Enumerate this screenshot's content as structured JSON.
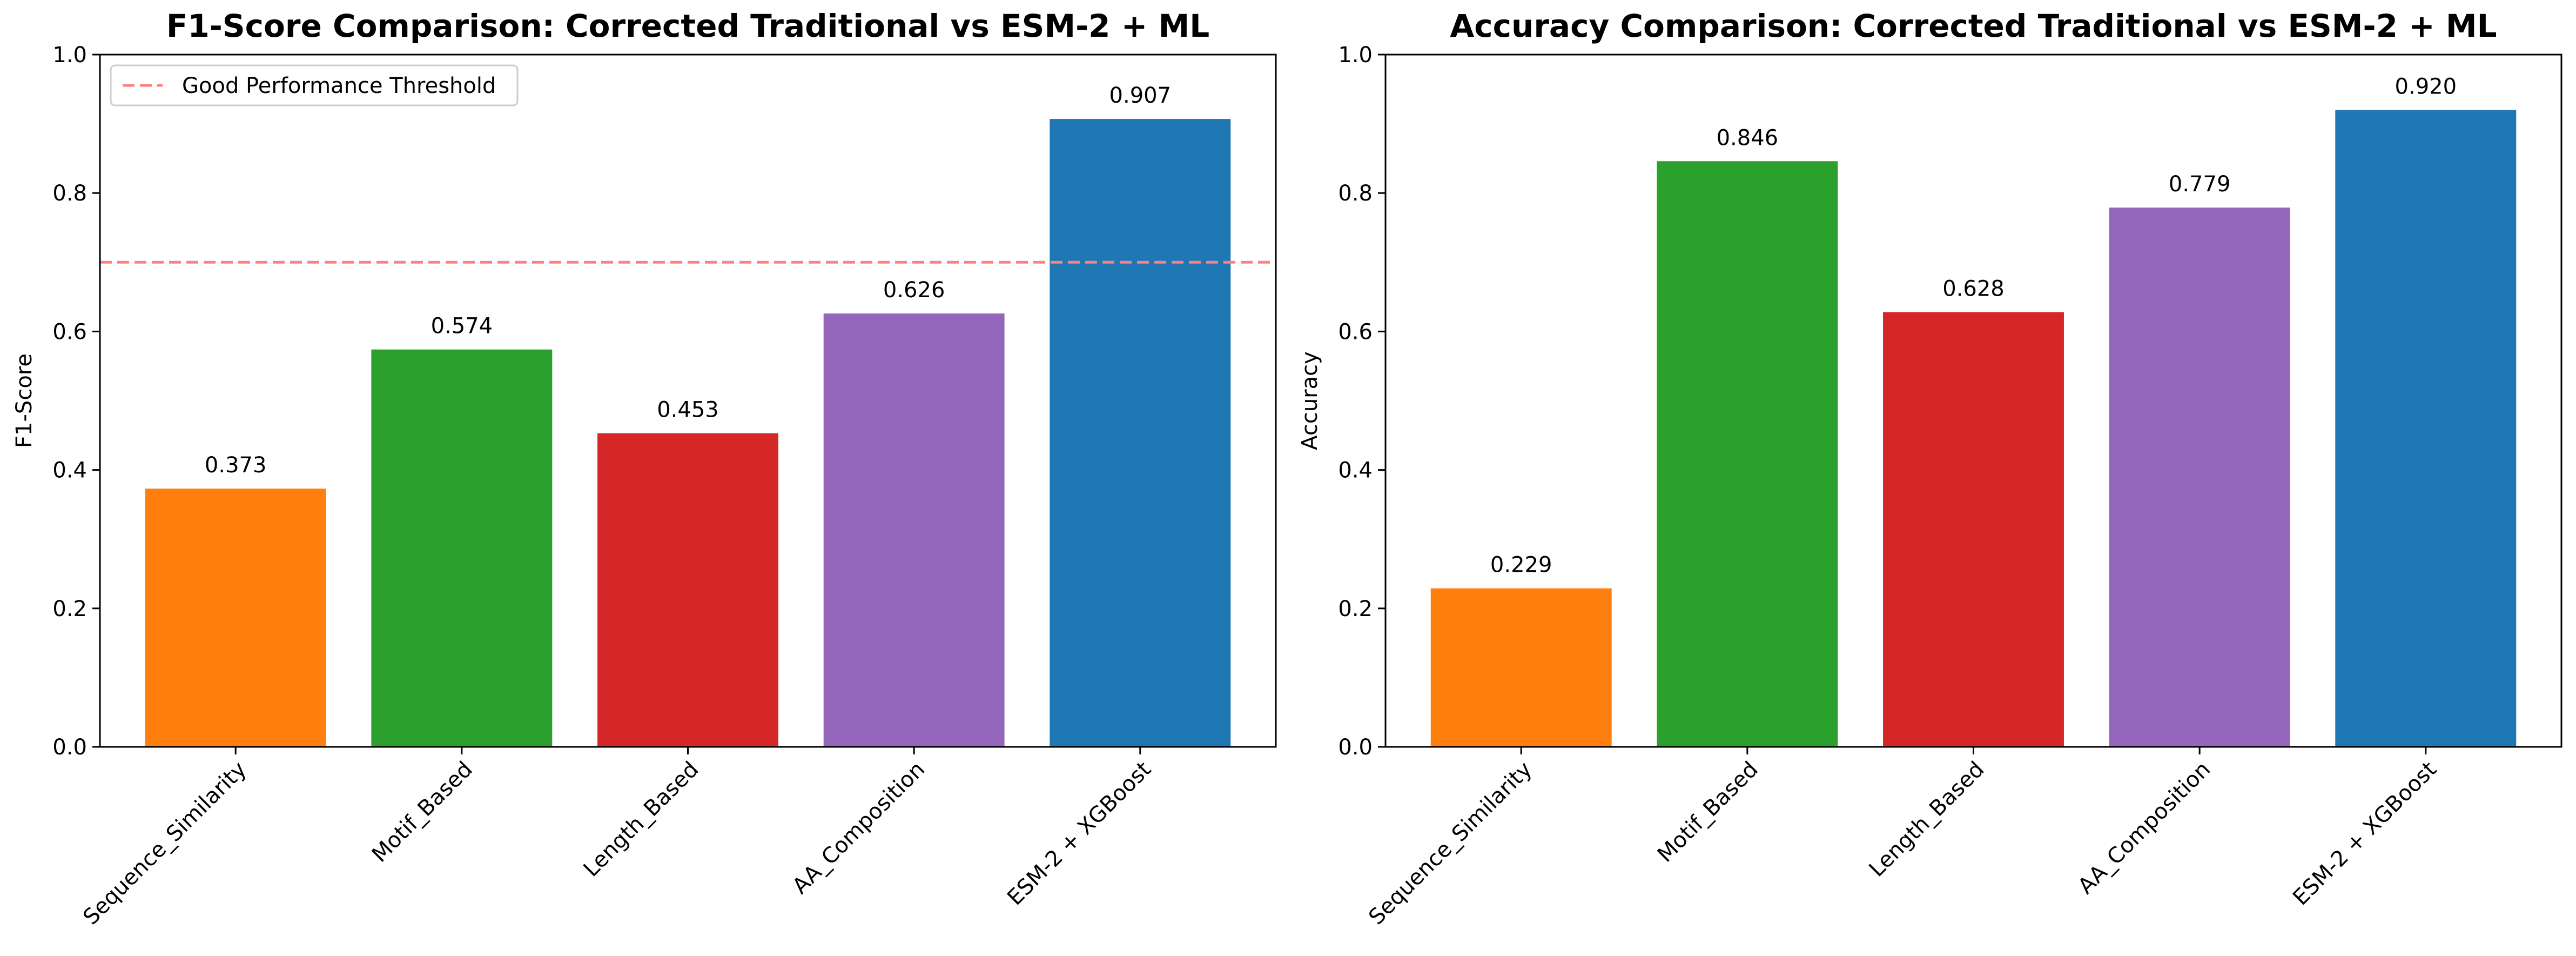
{
  "colors": {
    "orange": "#ff7f0e",
    "green": "#2ca02c",
    "red": "#d62728",
    "purple": "#9467bd",
    "blue": "#1f77b4",
    "threshold": "#ff8080"
  },
  "chart_data": [
    {
      "type": "bar",
      "title": "F1-Score Comparison: Corrected Traditional vs ESM-2 + ML",
      "xlabel": "",
      "ylabel": "F1-Score",
      "ylim": [
        0,
        1.0
      ],
      "yticks": [
        0.0,
        0.2,
        0.4,
        0.6,
        0.8,
        1.0
      ],
      "ytick_labels": [
        "0.0",
        "0.2",
        "0.4",
        "0.6",
        "0.8",
        "1.0"
      ],
      "categories": [
        "Sequence_Similarity",
        "Motif_Based",
        "Length_Based",
        "AA_Composition",
        "ESM-2 + XGBoost"
      ],
      "values": [
        0.373,
        0.574,
        0.453,
        0.626,
        0.907
      ],
      "value_labels": [
        "0.373",
        "0.574",
        "0.453",
        "0.626",
        "0.907"
      ],
      "bar_colors": [
        "#ff7f0e",
        "#2ca02c",
        "#d62728",
        "#9467bd",
        "#1f77b4"
      ],
      "threshold": {
        "value": 0.7,
        "label": "Good Performance Threshold",
        "style": "dashed"
      },
      "legend": {
        "entries": [
          "Good Performance Threshold"
        ],
        "placement": "top-left"
      },
      "grid": false
    },
    {
      "type": "bar",
      "title": "Accuracy Comparison: Corrected Traditional vs ESM-2 + ML",
      "xlabel": "",
      "ylabel": "Accuracy",
      "ylim": [
        0,
        1.0
      ],
      "yticks": [
        0.0,
        0.2,
        0.4,
        0.6,
        0.8,
        1.0
      ],
      "ytick_labels": [
        "0.0",
        "0.2",
        "0.4",
        "0.6",
        "0.8",
        "1.0"
      ],
      "categories": [
        "Sequence_Similarity",
        "Motif_Based",
        "Length_Based",
        "AA_Composition",
        "ESM-2 + XGBoost"
      ],
      "values": [
        0.229,
        0.846,
        0.628,
        0.779,
        0.92
      ],
      "value_labels": [
        "0.229",
        "0.846",
        "0.628",
        "0.779",
        "0.920"
      ],
      "bar_colors": [
        "#ff7f0e",
        "#2ca02c",
        "#d62728",
        "#9467bd",
        "#1f77b4"
      ],
      "legend": null,
      "grid": false
    }
  ]
}
